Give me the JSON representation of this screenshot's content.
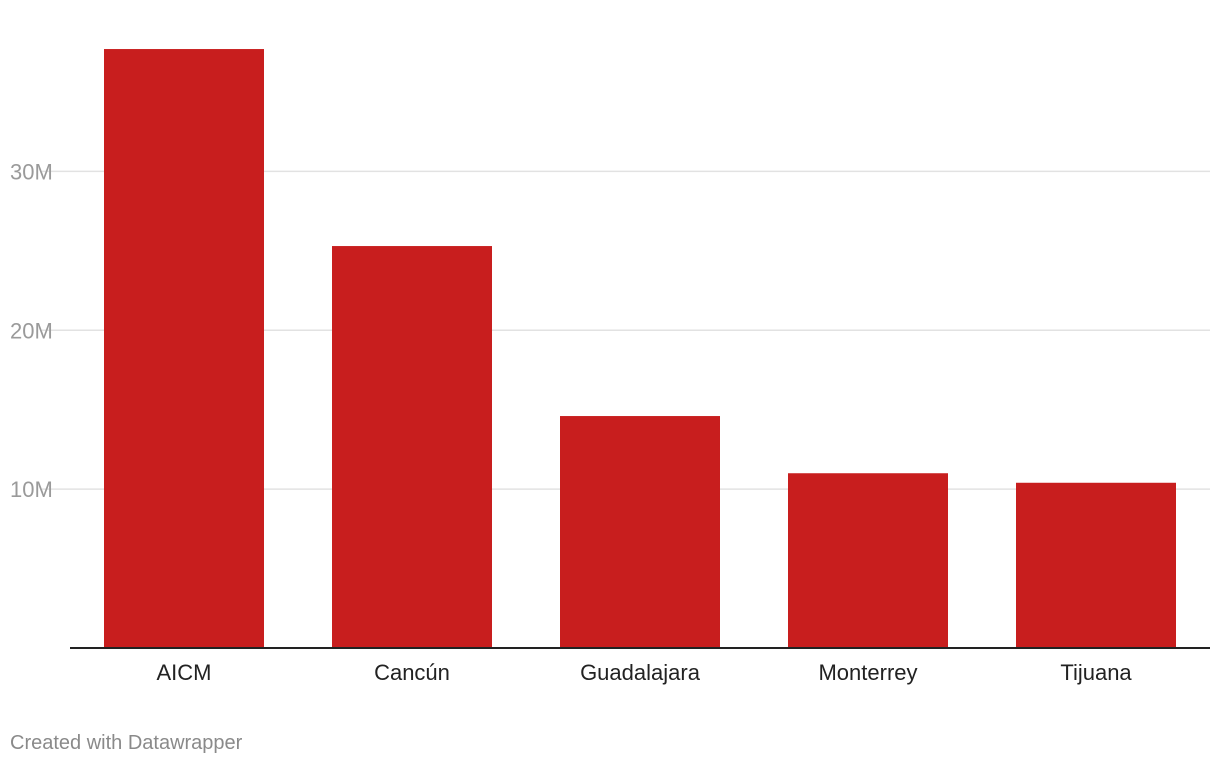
{
  "chart_data": {
    "type": "bar",
    "title": "",
    "xlabel": "",
    "ylabel": "",
    "categories": [
      "AICM",
      "Cancún",
      "Guadalajara",
      "Monterrey",
      "Tijuana"
    ],
    "values": [
      37.7,
      25.3,
      14.6,
      11.0,
      10.4
    ],
    "value_unit": "millions",
    "ylim": [
      0,
      40
    ],
    "yticks": [
      10,
      20,
      30
    ],
    "ytick_labels": [
      "10M",
      "20M",
      "30M"
    ],
    "grid": true,
    "legend": "none",
    "colors": {
      "bar": "#c81e1e",
      "grid": "#e2e2e2",
      "baseline": "#222222",
      "ytick_text": "#9a9a9a",
      "xtick_text": "#222222"
    }
  },
  "footer": {
    "credit": "Created with Datawrapper"
  }
}
